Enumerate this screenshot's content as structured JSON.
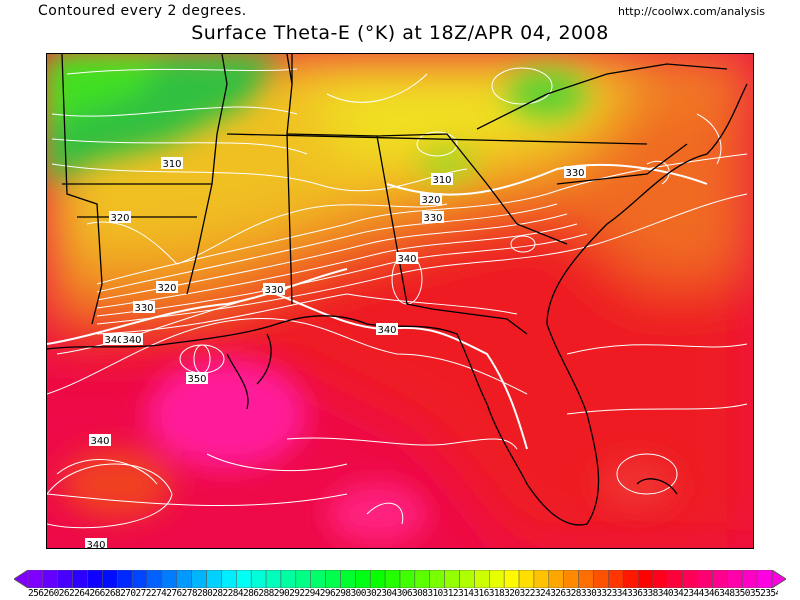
{
  "header": {
    "contour_note": "Contoured every 2 degrees.",
    "source_url": "http://coolwx.com/analysis",
    "title": "Surface Theta-E (°K) at 18Z/APR 04, 2008"
  },
  "map": {
    "contour_labels": [
      "310",
      "310",
      "320",
      "320",
      "330",
      "320",
      "330",
      "330",
      "330",
      "340",
      "340",
      "340",
      "340",
      "350",
      "340",
      "340"
    ]
  },
  "colorbar": {
    "min": 256,
    "max": 356,
    "step": 2,
    "tick_text": "25626026226426626827027227427627828028228428628829029229429629830030230430630831031231431631832032232432632833033233433633834034234434634835035235435"
  },
  "colors": {
    "purple": "#8a00ff",
    "green": "#22c84a",
    "yellow": "#f0e020",
    "orange": "#f07020",
    "red": "#ee1a20",
    "crimson": "#ee0a48",
    "magenta": "#ff1a9a"
  }
}
